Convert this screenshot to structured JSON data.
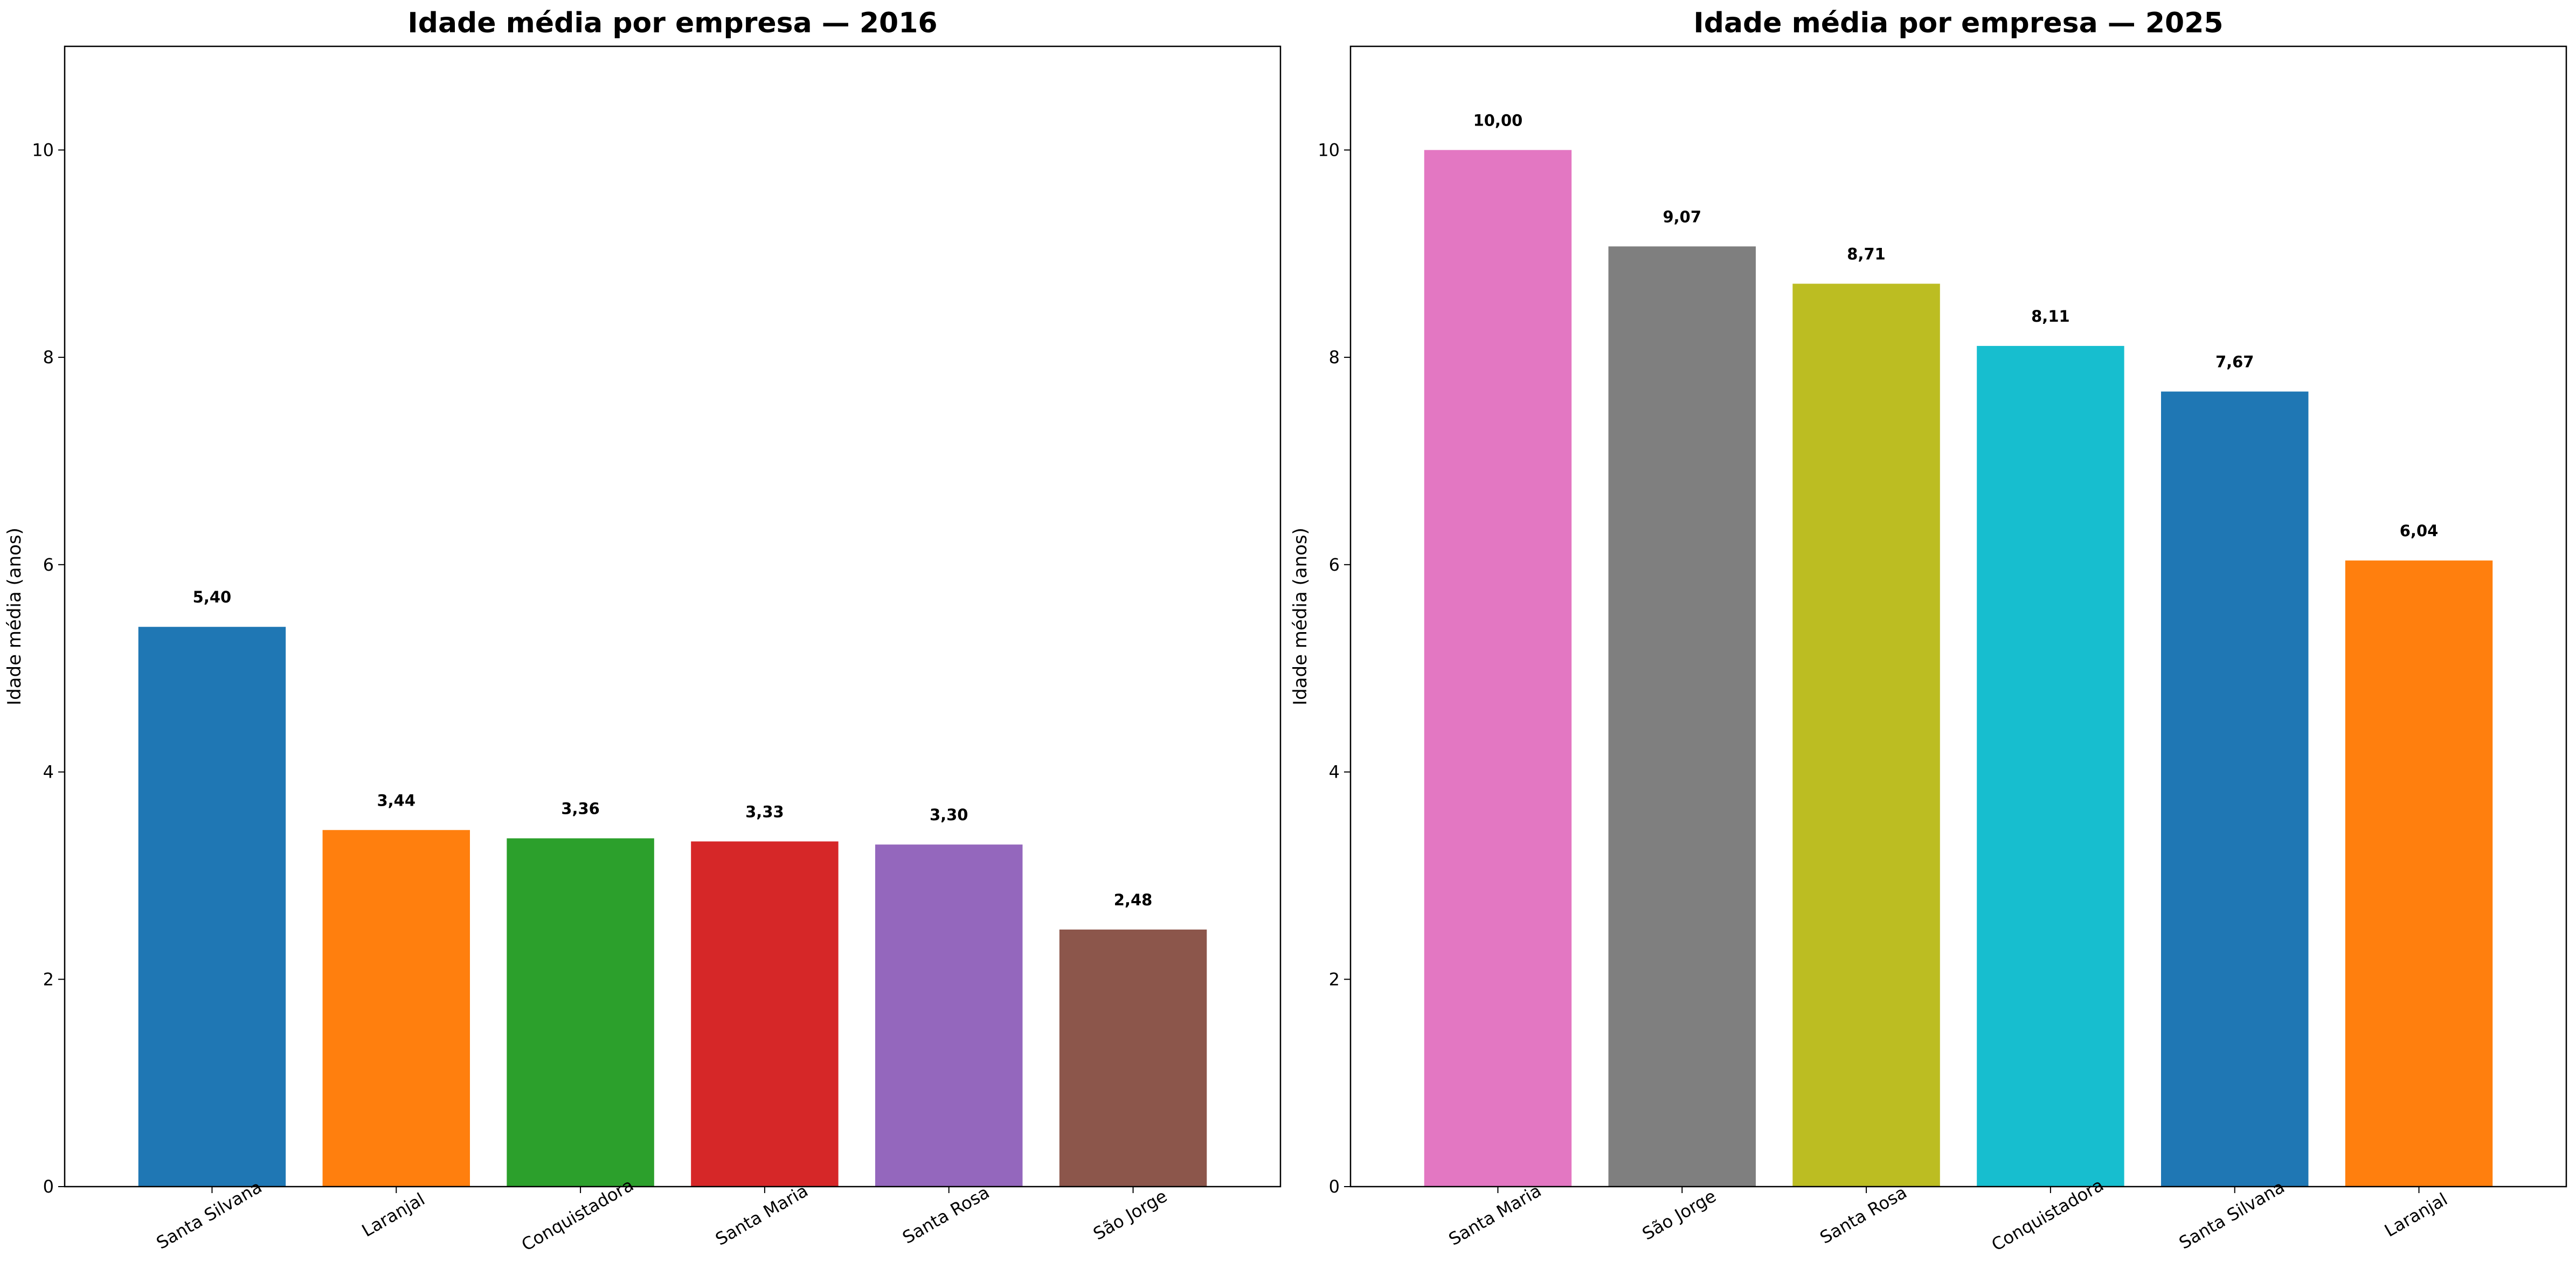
{
  "chart_data": [
    {
      "type": "bar",
      "title": "Idade média por empresa — 2016",
      "xlabel": "",
      "ylabel": "Idade média (anos)",
      "ylim": [
        0,
        11
      ],
      "yticks": [
        "0",
        "2",
        "4",
        "6",
        "8",
        "10"
      ],
      "categories": [
        "Santa Silvana",
        "Laranjal",
        "Conquistadora",
        "Santa Maria",
        "Santa Rosa",
        "São Jorge"
      ],
      "values": [
        5.4,
        3.44,
        3.36,
        3.33,
        3.3,
        2.48
      ],
      "value_labels": [
        "5,40",
        "3,44",
        "3,36",
        "3,33",
        "3,30",
        "2,48"
      ],
      "colors": [
        "#1f77b4",
        "#ff7f0e",
        "#2ca02c",
        "#d62728",
        "#9467bd",
        "#8c564b"
      ],
      "grid": false
    },
    {
      "type": "bar",
      "title": "Idade média por empresa — 2025",
      "xlabel": "",
      "ylabel": "Idade média (anos)",
      "ylim": [
        0,
        11
      ],
      "yticks": [
        "0",
        "2",
        "4",
        "6",
        "8",
        "10"
      ],
      "categories": [
        "Santa Maria",
        "São Jorge",
        "Santa Rosa",
        "Conquistadora",
        "Santa Silvana",
        "Laranjal"
      ],
      "values": [
        10.0,
        9.07,
        8.71,
        8.11,
        7.67,
        6.04
      ],
      "value_labels": [
        "10,00",
        "9,07",
        "8,71",
        "8,11",
        "7,67",
        "6,04"
      ],
      "colors": [
        "#e377c2",
        "#7f7f7f",
        "#bcbd22",
        "#17becf",
        "#1f77b4",
        "#ff7f0e"
      ],
      "grid": false
    }
  ]
}
